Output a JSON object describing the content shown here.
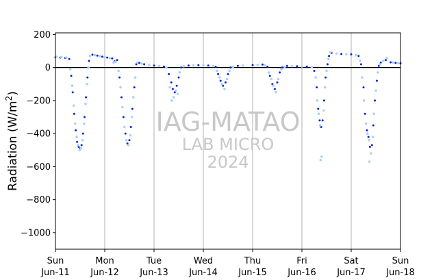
{
  "chart_data": {
    "type": "scatter",
    "ylabel_main": "Radiation (W/m",
    "ylabel_sup": "2",
    "ylabel_close": ")",
    "ylim": [
      -1100,
      210
    ],
    "xlim": [
      0,
      7
    ],
    "yticks": [
      200,
      0,
      -200,
      -400,
      -600,
      -800,
      -1000
    ],
    "ytick_labels": [
      "200",
      "0",
      "−200",
      "−400",
      "−600",
      "−800",
      "−1000"
    ],
    "xticks": [
      {
        "day": 0,
        "weekday": "Sun",
        "date": "Jun-11"
      },
      {
        "day": 1,
        "weekday": "Mon",
        "date": "Jun-12"
      },
      {
        "day": 2,
        "weekday": "Tue",
        "date": "Jun-13"
      },
      {
        "day": 3,
        "weekday": "Wed",
        "date": "Jun-14"
      },
      {
        "day": 4,
        "weekday": "Thu",
        "date": "Jun-15"
      },
      {
        "day": 5,
        "weekday": "Fri",
        "date": "Jun-16"
      },
      {
        "day": 6,
        "weekday": "Sat",
        "date": "Jun-17"
      },
      {
        "day": 7,
        "weekday": "Sun",
        "date": "Jun-18"
      }
    ],
    "grid_x": true,
    "grid_y": false,
    "zero_line": true,
    "colors": {
      "series_dark": "#0a1ee6",
      "series_light": "#a9d4ee",
      "grid": "#b0b0b0"
    },
    "series": [
      {
        "values": [
          [
            0.0,
            62
          ],
          [
            0.1,
            60
          ],
          [
            0.2,
            58
          ],
          [
            0.28,
            52
          ],
          [
            0.32,
            -50
          ],
          [
            0.35,
            -150
          ],
          [
            0.38,
            -280
          ],
          [
            0.41,
            -380
          ],
          [
            0.44,
            -450
          ],
          [
            0.47,
            -480
          ],
          [
            0.5,
            -490
          ],
          [
            0.53,
            -470
          ],
          [
            0.56,
            -400
          ],
          [
            0.59,
            -300
          ],
          [
            0.62,
            -180
          ],
          [
            0.65,
            -60
          ],
          [
            0.68,
            40
          ],
          [
            0.75,
            78
          ],
          [
            0.85,
            72
          ],
          [
            0.95,
            66
          ],
          [
            1.05,
            60
          ],
          [
            1.15,
            55
          ],
          [
            1.2,
            38
          ],
          [
            1.25,
            45
          ],
          [
            1.3,
            -60
          ],
          [
            1.34,
            -180
          ],
          [
            1.38,
            -300
          ],
          [
            1.42,
            -400
          ],
          [
            1.46,
            -460
          ],
          [
            1.5,
            -440
          ],
          [
            1.53,
            -360
          ],
          [
            1.56,
            -250
          ],
          [
            1.6,
            -120
          ],
          [
            1.64,
            20
          ],
          [
            1.7,
            28
          ],
          [
            1.8,
            20
          ],
          [
            2.0,
            12
          ],
          [
            2.2,
            6
          ],
          [
            2.3,
            -40
          ],
          [
            2.35,
            -90
          ],
          [
            2.38,
            -130
          ],
          [
            2.42,
            -150
          ],
          [
            2.46,
            -110
          ],
          [
            2.5,
            -60
          ],
          [
            2.55,
            0
          ],
          [
            2.7,
            12
          ],
          [
            2.9,
            14
          ],
          [
            3.1,
            12
          ],
          [
            3.25,
            5
          ],
          [
            3.3,
            -40
          ],
          [
            3.35,
            -80
          ],
          [
            3.4,
            -110
          ],
          [
            3.45,
            -90
          ],
          [
            3.5,
            -40
          ],
          [
            3.55,
            0
          ],
          [
            3.7,
            10
          ],
          [
            4.0,
            15
          ],
          [
            4.2,
            18
          ],
          [
            4.3,
            5
          ],
          [
            4.35,
            -50
          ],
          [
            4.4,
            -100
          ],
          [
            4.45,
            -130
          ],
          [
            4.5,
            -90
          ],
          [
            4.55,
            -30
          ],
          [
            4.6,
            0
          ],
          [
            4.7,
            10
          ],
          [
            4.9,
            8
          ],
          [
            5.1,
            6
          ],
          [
            5.25,
            -20
          ],
          [
            5.3,
            -120
          ],
          [
            5.33,
            -250
          ],
          [
            5.36,
            -320
          ],
          [
            5.39,
            -360
          ],
          [
            5.42,
            -320
          ],
          [
            5.45,
            -200
          ],
          [
            5.48,
            -60
          ],
          [
            5.52,
            20
          ],
          [
            5.55,
            70
          ],
          [
            5.6,
            88
          ],
          [
            5.8,
            82
          ],
          [
            6.0,
            80
          ],
          [
            6.15,
            70
          ],
          [
            6.2,
            20
          ],
          [
            6.25,
            -120
          ],
          [
            6.28,
            -280
          ],
          [
            6.32,
            -380
          ],
          [
            6.35,
            -420
          ],
          [
            6.38,
            -480
          ],
          [
            6.42,
            -470
          ],
          [
            6.45,
            -350
          ],
          [
            6.48,
            -200
          ],
          [
            6.52,
            -80
          ],
          [
            6.56,
            10
          ],
          [
            6.6,
            30
          ],
          [
            6.7,
            45
          ],
          [
            6.8,
            32
          ],
          [
            6.9,
            28
          ],
          [
            7.0,
            26
          ]
        ]
      },
      {
        "values": [
          [
            0.02,
            65
          ],
          [
            0.12,
            63
          ],
          [
            0.22,
            60
          ],
          [
            0.3,
            -10
          ],
          [
            0.34,
            -110
          ],
          [
            0.37,
            -230
          ],
          [
            0.4,
            -340
          ],
          [
            0.43,
            -420
          ],
          [
            0.46,
            -470
          ],
          [
            0.49,
            -500
          ],
          [
            0.52,
            -490
          ],
          [
            0.55,
            -440
          ],
          [
            0.58,
            -340
          ],
          [
            0.61,
            -220
          ],
          [
            0.64,
            -100
          ],
          [
            0.67,
            0
          ],
          [
            0.7,
            70
          ],
          [
            0.8,
            75
          ],
          [
            0.9,
            68
          ],
          [
            1.0,
            62
          ],
          [
            1.1,
            58
          ],
          [
            1.18,
            30
          ],
          [
            1.22,
            35
          ],
          [
            1.28,
            -20
          ],
          [
            1.32,
            -120
          ],
          [
            1.36,
            -240
          ],
          [
            1.4,
            -360
          ],
          [
            1.44,
            -440
          ],
          [
            1.48,
            -470
          ],
          [
            1.52,
            -410
          ],
          [
            1.55,
            -300
          ],
          [
            1.58,
            -180
          ],
          [
            1.62,
            -60
          ],
          [
            1.66,
            30
          ],
          [
            1.75,
            24
          ],
          [
            1.9,
            16
          ],
          [
            2.1,
            10
          ],
          [
            2.25,
            0
          ],
          [
            2.32,
            -120
          ],
          [
            2.36,
            -200
          ],
          [
            2.4,
            -180
          ],
          [
            2.44,
            -140
          ],
          [
            2.48,
            -160
          ],
          [
            2.52,
            -30
          ],
          [
            2.6,
            8
          ],
          [
            2.8,
            13
          ],
          [
            3.0,
            13
          ],
          [
            3.2,
            9
          ],
          [
            3.28,
            -20
          ],
          [
            3.33,
            -60
          ],
          [
            3.38,
            -100
          ],
          [
            3.43,
            -130
          ],
          [
            3.48,
            -70
          ],
          [
            3.53,
            -20
          ],
          [
            3.6,
            5
          ],
          [
            3.8,
            12
          ],
          [
            4.1,
            16
          ],
          [
            4.25,
            12
          ],
          [
            4.33,
            -30
          ],
          [
            4.38,
            -70
          ],
          [
            4.42,
            -110
          ],
          [
            4.47,
            -150
          ],
          [
            4.52,
            -70
          ],
          [
            4.58,
            -10
          ],
          [
            4.65,
            5
          ],
          [
            4.8,
            9
          ],
          [
            5.0,
            7
          ],
          [
            5.2,
            3
          ],
          [
            5.28,
            -60
          ],
          [
            5.31,
            -200
          ],
          [
            5.34,
            -280
          ],
          [
            5.37,
            -350
          ],
          [
            5.38,
            -560
          ],
          [
            5.4,
            -540
          ],
          [
            5.44,
            -260
          ],
          [
            5.47,
            -120
          ],
          [
            5.5,
            -20
          ],
          [
            5.54,
            50
          ],
          [
            5.58,
            92
          ],
          [
            5.7,
            85
          ],
          [
            5.9,
            81
          ],
          [
            6.1,
            75
          ],
          [
            6.18,
            40
          ],
          [
            6.22,
            -60
          ],
          [
            6.26,
            -200
          ],
          [
            6.3,
            -340
          ],
          [
            6.33,
            -400
          ],
          [
            6.36,
            -440
          ],
          [
            6.37,
            -570
          ],
          [
            6.4,
            -520
          ],
          [
            6.44,
            -420
          ],
          [
            6.46,
            -280
          ],
          [
            6.5,
            -140
          ],
          [
            6.54,
            -30
          ],
          [
            6.58,
            20
          ],
          [
            6.65,
            40
          ],
          [
            6.72,
            58
          ],
          [
            6.85,
            30
          ],
          [
            6.95,
            27
          ]
        ]
      }
    ]
  },
  "watermark": {
    "line1": "IAG-MATAO",
    "line2": "LAB MICRO",
    "line3": "2024"
  }
}
